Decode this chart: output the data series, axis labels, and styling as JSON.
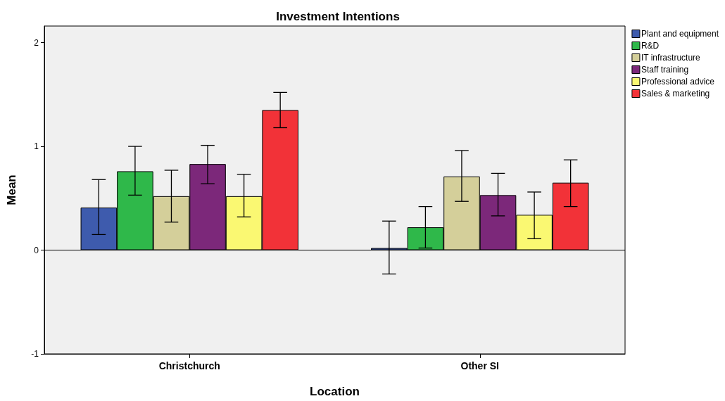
{
  "chart_data": {
    "type": "bar",
    "title": "Investment Intentions",
    "xlabel": "Location",
    "ylabel": "Mean",
    "categories": [
      "Christchurch",
      "Other SI"
    ],
    "series": [
      {
        "name": "Plant and equipment",
        "color": "#3e5bad",
        "values": [
          0.41,
          0.02
        ],
        "errors": [
          [
            0.15,
            0.68
          ],
          [
            -0.23,
            0.28
          ]
        ]
      },
      {
        "name": "R&D",
        "color": "#2fb84a",
        "values": [
          0.76,
          0.22
        ],
        "errors": [
          [
            0.53,
            1.0
          ],
          [
            0.02,
            0.42
          ]
        ]
      },
      {
        "name": "IT infrastructure",
        "color": "#d4cf9a",
        "values": [
          0.52,
          0.71
        ],
        "errors": [
          [
            0.27,
            0.77
          ],
          [
            0.47,
            0.96
          ]
        ]
      },
      {
        "name": "Staff training",
        "color": "#7c287a",
        "values": [
          0.83,
          0.53
        ],
        "errors": [
          [
            0.64,
            1.01
          ],
          [
            0.33,
            0.74
          ]
        ]
      },
      {
        "name": "Professional advice",
        "color": "#faf872",
        "values": [
          0.52,
          0.34
        ],
        "errors": [
          [
            0.32,
            0.73
          ],
          [
            0.11,
            0.56
          ]
        ]
      },
      {
        "name": "Sales & marketing",
        "color": "#f23238",
        "values": [
          1.35,
          0.65
        ],
        "errors": [
          [
            1.18,
            1.52
          ],
          [
            0.42,
            0.87
          ]
        ]
      }
    ],
    "ylim": [
      -1,
      2.16
    ],
    "yticks": [
      -1,
      0,
      1,
      2
    ],
    "ref_lines": [
      {
        "axis": "y",
        "value": 0,
        "color": "#000000"
      }
    ],
    "grid": false,
    "legend": "top right"
  }
}
